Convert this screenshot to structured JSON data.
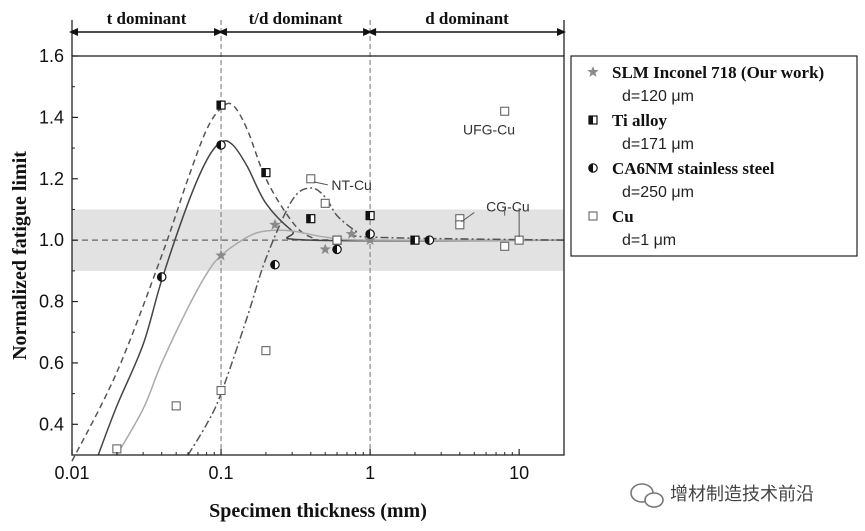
{
  "chart_data": {
    "type": "scatter",
    "title": "",
    "xlabel": "Specimen thickness (mm)",
    "ylabel": "Normalized fatigue limit",
    "xscale": "log",
    "xlim": [
      0.01,
      20
    ],
    "ylim": [
      0.3,
      1.6
    ],
    "xticks": [
      {
        "value": 0.01,
        "label": "0.01"
      },
      {
        "value": 0.1,
        "label": "0.1"
      },
      {
        "value": 1,
        "label": "1"
      },
      {
        "value": 10,
        "label": "10"
      }
    ],
    "yticks": [
      {
        "value": 0.4,
        "label": "0.4"
      },
      {
        "value": 0.6,
        "label": "0.6"
      },
      {
        "value": 0.8,
        "label": "0.8"
      },
      {
        "value": 1.0,
        "label": "1.0"
      },
      {
        "value": 1.2,
        "label": "1.2"
      },
      {
        "value": 1.4,
        "label": "1.4"
      },
      {
        "value": 1.6,
        "label": "1.6"
      }
    ],
    "band": {
      "ymin": 0.9,
      "ymax": 1.1
    },
    "reference_line_y": 1.0,
    "vlines": [
      0.1,
      1
    ],
    "regions": [
      {
        "label": "t dominant",
        "from": 0.01,
        "to": 0.1
      },
      {
        "label": "t/d dominant",
        "from": 0.1,
        "to": 1
      },
      {
        "label": "d dominant",
        "from": 1,
        "to": 20
      }
    ],
    "series": [
      {
        "name": "SLM Inconel 718 (Our work)",
        "sub": "d=120 μm",
        "marker": "star",
        "color": "#8a8a8a",
        "points": [
          [
            0.1,
            0.95
          ],
          [
            0.23,
            1.05
          ],
          [
            0.5,
            0.97
          ],
          [
            0.75,
            1.02
          ],
          [
            1.0,
            1.0
          ]
        ]
      },
      {
        "name": "Ti alloy",
        "sub": "d=171 μm",
        "marker": "half-square",
        "color": "#111111",
        "points": [
          [
            0.1,
            1.44
          ],
          [
            0.2,
            1.22
          ],
          [
            0.4,
            1.07
          ],
          [
            0.6,
            1.0
          ],
          [
            1.0,
            1.08
          ],
          [
            2.0,
            1.0
          ]
        ]
      },
      {
        "name": "CA6NM stainless steel",
        "sub": "d=250 μm",
        "marker": "half-circle",
        "color": "#111111",
        "points": [
          [
            0.04,
            0.88
          ],
          [
            0.1,
            1.31
          ],
          [
            0.23,
            0.92
          ],
          [
            0.6,
            0.97
          ],
          [
            1.0,
            1.02
          ],
          [
            2.5,
            1.0
          ]
        ]
      },
      {
        "name": "Cu",
        "sub": "d=1 μm",
        "marker": "open-square",
        "color": "#666666",
        "points": [
          [
            0.02,
            0.32
          ],
          [
            0.05,
            0.46
          ],
          [
            0.1,
            0.51
          ],
          [
            0.2,
            0.64
          ],
          [
            0.4,
            1.2
          ],
          [
            0.5,
            1.12
          ],
          [
            0.6,
            1.0
          ],
          [
            4.0,
            1.07
          ],
          [
            4.0,
            1.05
          ],
          [
            8.0,
            0.98
          ],
          [
            8.0,
            1.42
          ],
          [
            10.0,
            1.0
          ]
        ]
      }
    ],
    "curves": [
      {
        "name": "Ti alloy fit",
        "style": "dashed",
        "color": "#555555",
        "points": [
          [
            0.01,
            0.28
          ],
          [
            0.02,
            0.57
          ],
          [
            0.04,
            0.95
          ],
          [
            0.06,
            1.2
          ],
          [
            0.08,
            1.36
          ],
          [
            0.1,
            1.43
          ],
          [
            0.12,
            1.44
          ],
          [
            0.15,
            1.36
          ],
          [
            0.2,
            1.2
          ],
          [
            0.3,
            1.06
          ],
          [
            0.4,
            1.01
          ],
          [
            0.6,
            1.0
          ],
          [
            20,
            1.0
          ]
        ]
      },
      {
        "name": "CA6NM fit",
        "style": "solid",
        "color": "#444444",
        "points": [
          [
            0.015,
            0.3
          ],
          [
            0.02,
            0.46
          ],
          [
            0.03,
            0.66
          ],
          [
            0.04,
            0.87
          ],
          [
            0.06,
            1.12
          ],
          [
            0.08,
            1.26
          ],
          [
            0.1,
            1.32
          ],
          [
            0.12,
            1.31
          ],
          [
            0.15,
            1.24
          ],
          [
            0.2,
            1.12
          ],
          [
            0.3,
            1.03
          ],
          [
            0.4,
            1.0
          ],
          [
            20,
            1.0
          ]
        ]
      },
      {
        "name": "SLM Inconel 718 fit",
        "style": "solid",
        "color": "#aaaaaa",
        "points": [
          [
            0.02,
            0.3
          ],
          [
            0.03,
            0.45
          ],
          [
            0.04,
            0.6
          ],
          [
            0.06,
            0.78
          ],
          [
            0.08,
            0.89
          ],
          [
            0.1,
            0.95
          ],
          [
            0.15,
            1.01
          ],
          [
            0.2,
            1.03
          ],
          [
            0.3,
            1.03
          ],
          [
            0.5,
            1.01
          ],
          [
            1,
            1.0
          ],
          [
            20,
            1.0
          ]
        ]
      },
      {
        "name": "Cu fit",
        "style": "dashdot",
        "color": "#555555",
        "points": [
          [
            0.06,
            0.3
          ],
          [
            0.08,
            0.4
          ],
          [
            0.1,
            0.5
          ],
          [
            0.15,
            0.75
          ],
          [
            0.2,
            0.94
          ],
          [
            0.3,
            1.13
          ],
          [
            0.4,
            1.17
          ],
          [
            0.5,
            1.14
          ],
          [
            0.6,
            1.08
          ],
          [
            0.8,
            1.03
          ],
          [
            1,
            1.01
          ],
          [
            20,
            1.0
          ]
        ]
      }
    ],
    "annotations": [
      {
        "text": "NT-Cu",
        "x": 0.55,
        "y": 1.18,
        "lx1": 0.52,
        "ly1": 1.18,
        "lx2": 0.42,
        "ly2": 1.19
      },
      {
        "text": "UFG-Cu",
        "x": 4.2,
        "y": 1.36,
        "lx1": 8.0,
        "ly1": 1.41,
        "lx2": 8.0,
        "ly2": 1.41
      },
      {
        "text": "CG-Cu",
        "x": 6.0,
        "y": 1.11,
        "lx1": 5.0,
        "ly1": 1.09,
        "lx2": 4.1,
        "ly2": 1.06
      }
    ]
  },
  "legend": {
    "placement": "right",
    "entries": [
      {
        "label": "SLM Inconel 718 (Our work)",
        "sub": "d=120 μm",
        "marker": "star"
      },
      {
        "label": "Ti alloy",
        "sub": "d=171 μm",
        "marker": "half-square"
      },
      {
        "label": "CA6NM stainless steel",
        "sub": "d=250 μm",
        "marker": "half-circle"
      },
      {
        "label": "Cu",
        "sub": "d=1 μm",
        "marker": "open-square"
      }
    ]
  },
  "watermark": {
    "text": "增材制造技术前沿",
    "icon": "wechat-icon"
  },
  "colors": {
    "band": "#e2e2e2",
    "axis": "#222222",
    "vline": "#8a8a8a"
  }
}
